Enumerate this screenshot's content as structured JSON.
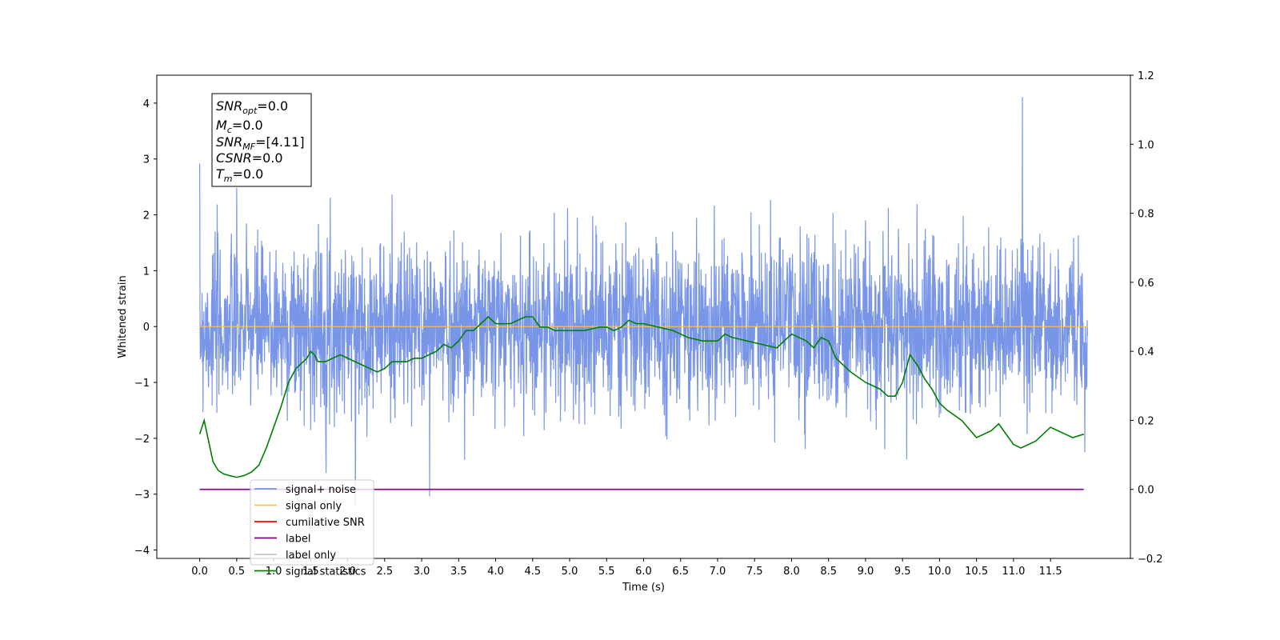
{
  "chart_data": {
    "type": "line",
    "xlabel": "Time (s)",
    "ylabel": "Whitened strain",
    "xlim": [
      -0.58,
      12.58
    ],
    "ylim": [
      -4.15,
      4.5
    ],
    "y2lim": [
      -0.2,
      1.2
    ],
    "x_ticks": [
      "0.0",
      "0.5",
      "1.0",
      "1.5",
      "2.0",
      "2.5",
      "3.0",
      "3.5",
      "4.0",
      "4.5",
      "5.0",
      "5.5",
      "6.0",
      "6.5",
      "7.0",
      "7.5",
      "8.0",
      "8.5",
      "9.0",
      "9.5",
      "10.0",
      "10.5",
      "11.0",
      "11.5"
    ],
    "y_ticks": [
      "4",
      "3",
      "2",
      "1",
      "0",
      "−1",
      "−2",
      "−3",
      "−4"
    ],
    "y2_ticks": [
      "1.2",
      "1.0",
      "0.8",
      "0.6",
      "0.4",
      "0.2",
      "0.0",
      "−0.2"
    ],
    "grid": false,
    "legend_position": "lower-left",
    "annotation": {
      "snr_opt": {
        "base": "SNR",
        "sub": "opt",
        "rest": "=0.0"
      },
      "mc": {
        "base": "M",
        "sub": "c",
        "rest": "=0.0"
      },
      "snr_mf": {
        "base": "SNR",
        "sub": "MF",
        "rest": "=[4.11]"
      },
      "csnr": {
        "base": "CSNR",
        "sub": "",
        "rest": "=0.0"
      },
      "tm": {
        "base": "T",
        "sub": "m",
        "rest": "=0.0"
      }
    },
    "series": [
      {
        "name": "signal+ noise",
        "color": "#7895e8",
        "axis": "left",
        "kind": "noise",
        "x_range": [
          0,
          12.0
        ],
        "std": 0.75,
        "peak_max": 4.11,
        "peak_x": 11.12
      },
      {
        "name": "signal only",
        "color": "#ffbb55",
        "axis": "left",
        "x": [
          0,
          12.0
        ],
        "y": [
          0,
          0
        ]
      },
      {
        "name": "cumilative SNR",
        "color": "#ff0000",
        "axis": "left",
        "x": [],
        "y": []
      },
      {
        "name": "label",
        "color": "#800080",
        "axis": "right",
        "x": [
          0,
          11.95
        ],
        "y": [
          0,
          0
        ]
      },
      {
        "name": "label only",
        "color": "#cccccc",
        "axis": "right",
        "x": [],
        "y": []
      },
      {
        "name": "signal statistics",
        "color": "#008000",
        "axis": "right",
        "x": [
          0.0,
          0.06,
          0.12,
          0.18,
          0.25,
          0.32,
          0.4,
          0.5,
          0.6,
          0.7,
          0.8,
          0.9,
          1.0,
          1.1,
          1.2,
          1.3,
          1.4,
          1.45,
          1.5,
          1.55,
          1.6,
          1.7,
          1.8,
          1.9,
          2.0,
          2.1,
          2.2,
          2.3,
          2.4,
          2.5,
          2.6,
          2.7,
          2.8,
          2.9,
          3.0,
          3.1,
          3.2,
          3.3,
          3.4,
          3.5,
          3.6,
          3.7,
          3.8,
          3.9,
          4.0,
          4.2,
          4.4,
          4.5,
          4.6,
          4.7,
          4.8,
          5.0,
          5.2,
          5.4,
          5.5,
          5.6,
          5.7,
          5.8,
          5.9,
          6.0,
          6.2,
          6.4,
          6.5,
          6.6,
          6.8,
          7.0,
          7.1,
          7.2,
          7.4,
          7.6,
          7.8,
          8.0,
          8.2,
          8.3,
          8.4,
          8.5,
          8.6,
          8.8,
          9.0,
          9.2,
          9.3,
          9.4,
          9.5,
          9.6,
          9.7,
          9.8,
          9.9,
          10.0,
          10.1,
          10.3,
          10.5,
          10.7,
          10.8,
          11.0,
          11.1,
          11.3,
          11.4,
          11.5,
          11.6,
          11.7,
          11.8,
          11.95
        ],
        "y": [
          0.16,
          0.2,
          0.14,
          0.08,
          0.055,
          0.045,
          0.04,
          0.035,
          0.04,
          0.05,
          0.07,
          0.12,
          0.18,
          0.24,
          0.31,
          0.35,
          0.37,
          0.38,
          0.4,
          0.39,
          0.37,
          0.37,
          0.38,
          0.39,
          0.38,
          0.37,
          0.36,
          0.35,
          0.34,
          0.35,
          0.37,
          0.37,
          0.37,
          0.38,
          0.38,
          0.39,
          0.4,
          0.42,
          0.41,
          0.43,
          0.46,
          0.46,
          0.48,
          0.5,
          0.48,
          0.48,
          0.5,
          0.5,
          0.47,
          0.47,
          0.46,
          0.46,
          0.46,
          0.47,
          0.47,
          0.46,
          0.47,
          0.49,
          0.48,
          0.48,
          0.47,
          0.46,
          0.45,
          0.44,
          0.43,
          0.43,
          0.45,
          0.44,
          0.43,
          0.42,
          0.41,
          0.45,
          0.43,
          0.41,
          0.44,
          0.43,
          0.38,
          0.34,
          0.31,
          0.29,
          0.27,
          0.27,
          0.31,
          0.39,
          0.36,
          0.32,
          0.29,
          0.25,
          0.23,
          0.2,
          0.15,
          0.17,
          0.19,
          0.13,
          0.12,
          0.14,
          0.16,
          0.18,
          0.17,
          0.16,
          0.15,
          0.16
        ]
      }
    ]
  }
}
